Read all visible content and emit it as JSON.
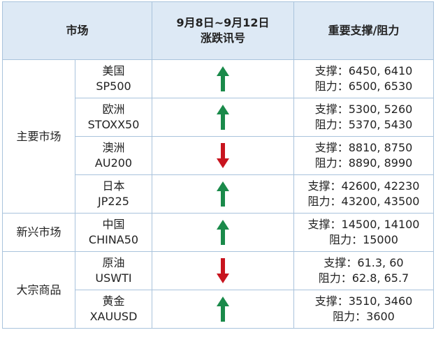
{
  "header": {
    "market": "市场",
    "period": "9月8日~9月12日",
    "signal": "涨跌讯号",
    "levels": "重要支撑/阻力"
  },
  "groups": [
    {
      "name": "主要市场",
      "rows": [
        {
          "name": "美国",
          "code": "SP500",
          "direction": "up",
          "support": "支撑：6450, 6410",
          "resistance": "阻力：6500, 6530"
        },
        {
          "name": "欧洲",
          "code": "STOXX50",
          "direction": "up",
          "support": "支撑：5300, 5260",
          "resistance": "阻力：5370, 5430"
        },
        {
          "name": "澳洲",
          "code": "AU200",
          "direction": "down",
          "support": "支撑：8810, 8750",
          "resistance": "阻力：8890, 8990"
        },
        {
          "name": "日本",
          "code": "JP225",
          "direction": "up",
          "support": "支撑：42600, 42230",
          "resistance": "阻力：43200, 43500"
        }
      ]
    },
    {
      "name": "新兴市场",
      "rows": [
        {
          "name": "中国",
          "code": "CHINA50",
          "direction": "up",
          "support": "支撑：14500, 14100",
          "resistance": "阻力：15000"
        }
      ]
    },
    {
      "name": "大宗商品",
      "rows": [
        {
          "name": "原油",
          "code": "USWTI",
          "direction": "down",
          "support": "支撑：61.3, 60",
          "resistance": "阻力：62.8, 65.7"
        },
        {
          "name": "黄金",
          "code": "XAUUSD",
          "direction": "up",
          "support": "支撑：3510, 3460",
          "resistance": "阻力：3600"
        }
      ]
    }
  ]
}
